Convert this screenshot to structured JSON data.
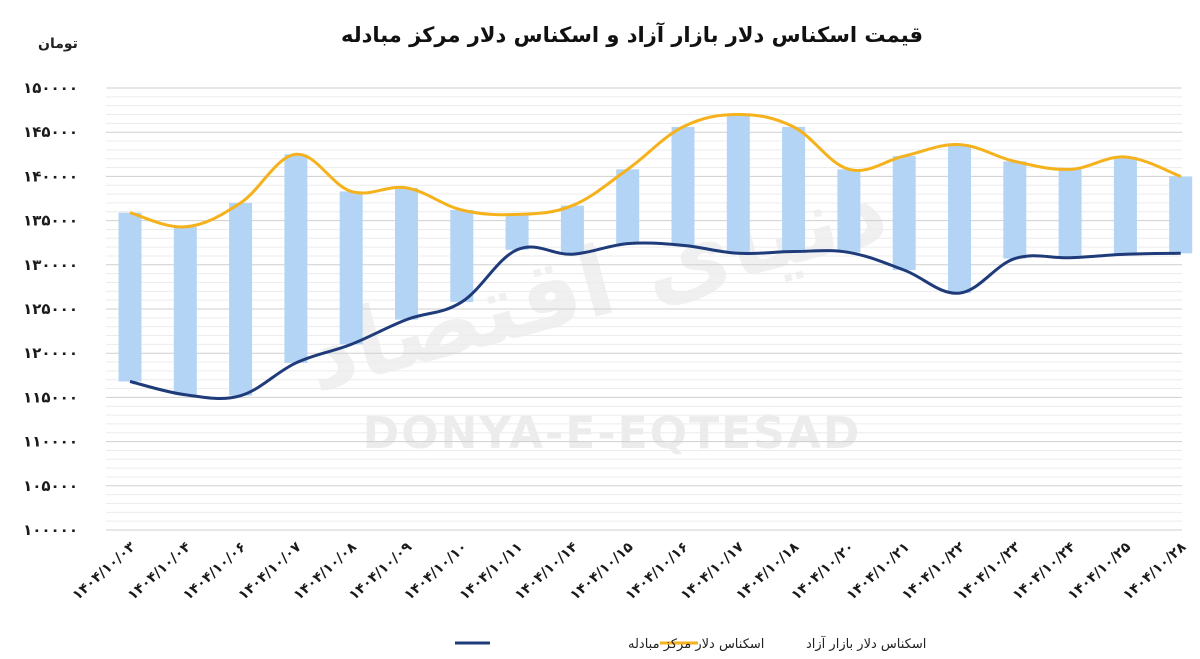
{
  "chart_data": {
    "type": "line",
    "title": "قیمت اسکناس دلار بازار آزاد و اسکناس دلار مرکز مبادله",
    "ylabel": "تومان",
    "xlabel": "",
    "ylim": [
      100000,
      150000
    ],
    "yticks": [
      100000,
      105000,
      110000,
      115000,
      120000,
      125000,
      130000,
      135000,
      140000,
      145000,
      150000
    ],
    "ytick_labels": [
      "۱۰۰۰۰۰",
      "۱۰۵۰۰۰",
      "۱۱۰۰۰۰",
      "۱۱۵۰۰۰",
      "۱۲۰۰۰۰",
      "۱۲۵۰۰۰",
      "۱۳۰۰۰۰",
      "۱۳۵۰۰۰",
      "۱۴۰۰۰۰",
      "۱۴۵۰۰۰",
      "۱۵۰۰۰۰"
    ],
    "categories": [
      "۱۴۰۴/۱۰/۰۳",
      "۱۴۰۴/۱۰/۰۴",
      "۱۴۰۴/۱۰/۰۶",
      "۱۴۰۴/۱۰/۰۷",
      "۱۴۰۴/۱۰/۰۸",
      "۱۴۰۴/۱۰/۰۹",
      "۱۴۰۴/۱۰/۱۰",
      "۱۴۰۴/۱۰/۱۱",
      "۱۴۰۴/۱۰/۱۴",
      "۱۴۰۴/۱۰/۱۵",
      "۱۴۰۴/۱۰/۱۶",
      "۱۴۰۴/۱۰/۱۷",
      "۱۴۰۴/۱۰/۱۸",
      "۱۴۰۴/۱۰/۲۰",
      "۱۴۰۴/۱۰/۲۱",
      "۱۴۰۴/۱۰/۲۲",
      "۱۴۰۴/۱۰/۲۳",
      "۱۴۰۴/۱۰/۲۴",
      "۱۴۰۴/۱۰/۲۵",
      "۱۴۰۴/۱۰/۲۸"
    ],
    "series": [
      {
        "name": "اسکناس دلار بازار آزاد",
        "color": "#F5B21C",
        "values": [
          135900,
          134300,
          137000,
          142500,
          138300,
          138700,
          136200,
          135700,
          136700,
          140800,
          145600,
          147000,
          145600,
          140800,
          142300,
          143600,
          141700,
          140800,
          142200,
          140000
        ]
      },
      {
        "name": "اسکناس دلار مرکز مبادله",
        "color": "#1F3B7A",
        "values": [
          116800,
          115300,
          115200,
          118900,
          121000,
          123800,
          125800,
          131700,
          131200,
          132400,
          132200,
          131300,
          131500,
          131400,
          129400,
          126800,
          130700,
          130800,
          131200,
          131300
        ]
      }
    ],
    "range_bars": {
      "color": "#B3D4F5"
    },
    "grid": true,
    "legend_position": "bottom"
  },
  "watermark": {
    "text": "DONYA-E-EQTESAD",
    "logo_text": "دنیای اقتصاد"
  }
}
